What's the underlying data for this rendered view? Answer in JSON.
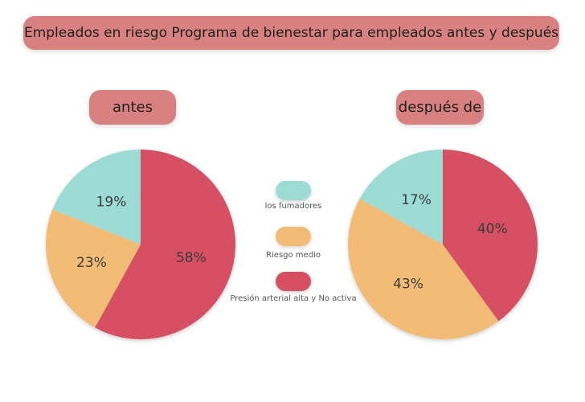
{
  "title": "Empleados en riesgo Programa de bienestar para empleados antes y después",
  "colors": {
    "smokers": "#9cdcd5",
    "medium": "#f2bc76",
    "high": "#d64f63",
    "pill": "#d98080"
  },
  "chart_data": [
    {
      "type": "pie",
      "title": "antes",
      "categories": [
        "los fumadores",
        "Riesgo medio",
        "Presión arterial alta y No activa"
      ],
      "values": [
        19,
        23,
        58
      ],
      "labels": [
        "19%",
        "23%",
        "58%"
      ]
    },
    {
      "type": "pie",
      "title": "después de",
      "categories": [
        "los fumadores",
        "Riesgo medio",
        "Presión arterial alta y No activa"
      ],
      "values": [
        17,
        43,
        40
      ],
      "labels": [
        "17%",
        "43%",
        "40%"
      ]
    }
  ],
  "legend": [
    {
      "label": "los fumadores",
      "color_key": "smokers"
    },
    {
      "label": "Riesgo medio",
      "color_key": "medium"
    },
    {
      "label": "Presión arterial alta y No activa",
      "color_key": "high"
    }
  ]
}
